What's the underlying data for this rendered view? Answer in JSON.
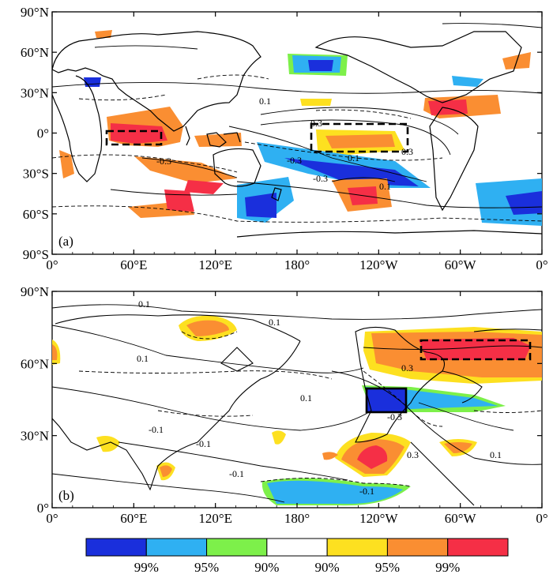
{
  "chart_data": [
    {
      "type": "map",
      "panel_label": "(a)",
      "x_tick_labels": [
        "0°",
        "60°E",
        "120°E",
        "180°",
        "120°W",
        "60°W",
        "0°"
      ],
      "y_tick_labels": [
        "90°N",
        "60°N",
        "30°N",
        "0°",
        "30°S",
        "60°S",
        "90°S"
      ],
      "contour_labels": [
        "0.1",
        "-0.3",
        "-0.3",
        "0.3",
        "0.1",
        "0.3",
        "-0.3",
        "0.1"
      ],
      "boxes": [
        {
          "lon": [
            40,
            80
          ],
          "lat": [
            -10,
            0
          ]
        },
        {
          "lon": [
            190,
            270
          ],
          "lat": [
            -15,
            5
          ]
        }
      ]
    },
    {
      "type": "map",
      "panel_label": "(b)",
      "x_tick_labels": [
        "0°",
        "60°E",
        "120°E",
        "180°",
        "120°W",
        "60°W",
        "0°"
      ],
      "y_tick_labels": [
        "90°N",
        "60°N",
        "30°N",
        "0°"
      ],
      "contour_labels": [
        "0.1",
        "0.1",
        "-0.1",
        "0.1",
        "0.1",
        "0.3",
        "-0.3",
        "0.3",
        "-0.1",
        "0.1",
        "-0.1",
        "-0.1"
      ],
      "boxes": [
        {
          "lon": [
            235,
            245
          ],
          "lat": [
            40,
            50
          ]
        },
        {
          "lon": [
            280,
            350
          ],
          "lat": [
            62,
            70
          ]
        }
      ]
    }
  ],
  "colorbar": {
    "colors": [
      "#1a2fdc",
      "#2fb0f2",
      "#7df04a",
      "#ffffff",
      "#fde020",
      "#fa8e32",
      "#f52f46"
    ],
    "labels": [
      "99%",
      "95%",
      "90%",
      "90%",
      "95%",
      "99%"
    ]
  }
}
